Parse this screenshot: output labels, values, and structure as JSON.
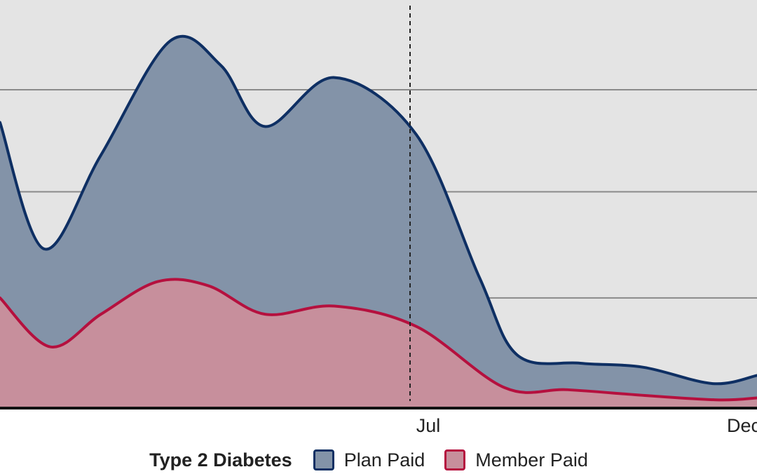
{
  "chart_data": {
    "type": "area",
    "title": "",
    "xlabel": "",
    "ylabel": "",
    "x_tick_labels": [
      {
        "label": "Jul",
        "month": 6.5
      },
      {
        "label": "Dec",
        "month": 11.5
      }
    ],
    "x_range": [
      0,
      12
    ],
    "y_range": [
      0,
      100
    ],
    "grid_y": [
      27,
      53,
      78
    ],
    "marker_line_month": 6.5,
    "legend": {
      "title": "Type 2 Diabetes",
      "placement": "bottom"
    },
    "series": [
      {
        "name": "Plan Paid",
        "line_color": "#0e2f63",
        "fill_color": "#8393a8",
        "points": [
          {
            "month": 0.0,
            "value": 70
          },
          {
            "month": 0.7,
            "value": 39
          },
          {
            "month": 1.6,
            "value": 62
          },
          {
            "month": 2.7,
            "value": 90
          },
          {
            "month": 3.5,
            "value": 84
          },
          {
            "month": 4.2,
            "value": 69
          },
          {
            "month": 5.3,
            "value": 81
          },
          {
            "month": 6.6,
            "value": 67
          },
          {
            "month": 7.6,
            "value": 32
          },
          {
            "month": 8.2,
            "value": 13
          },
          {
            "month": 9.2,
            "value": 11
          },
          {
            "month": 10.2,
            "value": 10
          },
          {
            "month": 11.3,
            "value": 6
          },
          {
            "month": 12.0,
            "value": 8
          }
        ]
      },
      {
        "name": "Member Paid",
        "line_color": "#b5103e",
        "fill_color": "#c78f9c",
        "points": [
          {
            "month": 0.0,
            "value": 27
          },
          {
            "month": 0.8,
            "value": 15
          },
          {
            "month": 1.6,
            "value": 23
          },
          {
            "month": 2.5,
            "value": 31
          },
          {
            "month": 3.3,
            "value": 30
          },
          {
            "month": 4.2,
            "value": 23
          },
          {
            "month": 5.3,
            "value": 25
          },
          {
            "month": 6.6,
            "value": 20
          },
          {
            "month": 8.0,
            "value": 5
          },
          {
            "month": 9.0,
            "value": 4.5
          },
          {
            "month": 10.3,
            "value": 3
          },
          {
            "month": 11.4,
            "value": 2
          },
          {
            "month": 12.0,
            "value": 2.5
          }
        ]
      }
    ]
  }
}
